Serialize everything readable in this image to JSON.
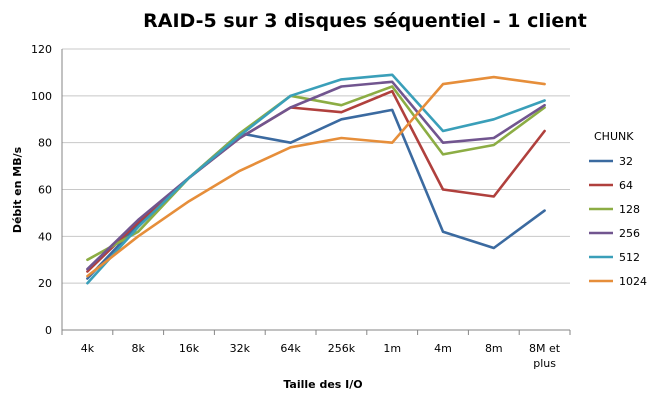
{
  "chart_data": {
    "type": "line",
    "title": "RAID-5 sur 3 disques séquentiel - 1 client",
    "xlabel": "Taille des I/O",
    "ylabel": "Débit en MB/s",
    "categories": [
      "4k",
      "8k",
      "16k",
      "32k",
      "64k",
      "256k",
      "1m",
      "4m",
      "8m",
      "8M et plus"
    ],
    "ylim": [
      0,
      120
    ],
    "yticks": [
      0,
      20,
      40,
      60,
      80,
      100,
      120
    ],
    "grid": "horizontal",
    "legend": {
      "title": "CHUNK",
      "placement": "right"
    },
    "series": [
      {
        "name": "32",
        "color": "#3b6aa0",
        "values": [
          22,
          45,
          65,
          84,
          80,
          90,
          94,
          42,
          35,
          51
        ]
      },
      {
        "name": "64",
        "color": "#b0403d",
        "values": [
          25,
          46,
          65,
          82,
          95,
          93,
          102,
          60,
          57,
          85
        ]
      },
      {
        "name": "128",
        "color": "#8cad44",
        "values": [
          30,
          42,
          65,
          84,
          100,
          96,
          104,
          75,
          79,
          95
        ]
      },
      {
        "name": "256",
        "color": "#71558f",
        "values": [
          26,
          47,
          65,
          82,
          95,
          104,
          106,
          80,
          82,
          96
        ]
      },
      {
        "name": "512",
        "color": "#3a9fb9",
        "values": [
          20,
          44,
          65,
          83,
          100,
          107,
          109,
          85,
          90,
          98
        ]
      },
      {
        "name": "1024",
        "color": "#e68e3a",
        "values": [
          23,
          40,
          55,
          68,
          78,
          82,
          80,
          105,
          108,
          105
        ]
      }
    ]
  }
}
